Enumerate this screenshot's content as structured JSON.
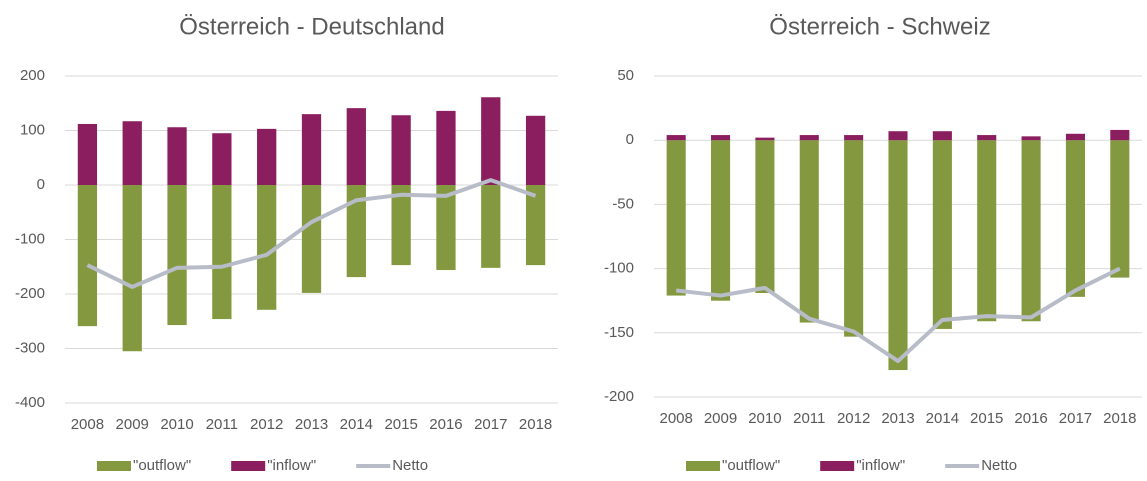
{
  "chart_data": [
    {
      "type": "combo",
      "title": "Österreich - Deutschland",
      "categories": [
        "2008",
        "2009",
        "2010",
        "2011",
        "2012",
        "2013",
        "2014",
        "2015",
        "2016",
        "2017",
        "2018"
      ],
      "series": [
        {
          "name": "\"outflow\"",
          "type": "bar",
          "color": "#84993f",
          "values": [
            -259,
            -305,
            -257,
            -246,
            -229,
            -198,
            -169,
            -147,
            -156,
            -152,
            -147
          ]
        },
        {
          "name": "\"inflow\"",
          "type": "bar",
          "color": "#8b1e5f",
          "values": [
            112,
            117,
            106,
            95,
            103,
            130,
            141,
            128,
            136,
            161,
            127
          ]
        },
        {
          "name": "Netto",
          "type": "line",
          "color": "#b7bcc8",
          "values": [
            -147,
            -187,
            -152,
            -150,
            -128,
            -68,
            -28,
            -18,
            -20,
            9,
            -20
          ]
        }
      ],
      "ylim": [
        -400,
        200
      ],
      "yticks": [
        -400,
        -300,
        -200,
        -100,
        0,
        100,
        200
      ],
      "grid": true,
      "legend": "bottom"
    },
    {
      "type": "combo",
      "title": "Österreich - Schweiz",
      "categories": [
        "2008",
        "2009",
        "2010",
        "2011",
        "2012",
        "2013",
        "2014",
        "2015",
        "2016",
        "2017",
        "2018"
      ],
      "series": [
        {
          "name": "\"outflow\"",
          "type": "bar",
          "color": "#84993f",
          "values": [
            -121,
            -125,
            -119,
            -142,
            -153,
            -179,
            -147,
            -141,
            -141,
            -122,
            -107
          ]
        },
        {
          "name": "\"inflow\"",
          "type": "bar",
          "color": "#8b1e5f",
          "values": [
            4,
            4,
            2,
            4,
            4,
            7,
            7,
            4,
            3,
            5,
            8
          ]
        },
        {
          "name": "Netto",
          "type": "line",
          "color": "#b7bcc8",
          "values": [
            -117,
            -121,
            -115,
            -139,
            -149,
            -172,
            -140,
            -137,
            -138,
            -117,
            -100
          ]
        }
      ],
      "ylim": [
        -200,
        50
      ],
      "yticks": [
        -200,
        -150,
        -100,
        -50,
        0,
        50
      ],
      "grid": true,
      "legend": "bottom"
    }
  ]
}
